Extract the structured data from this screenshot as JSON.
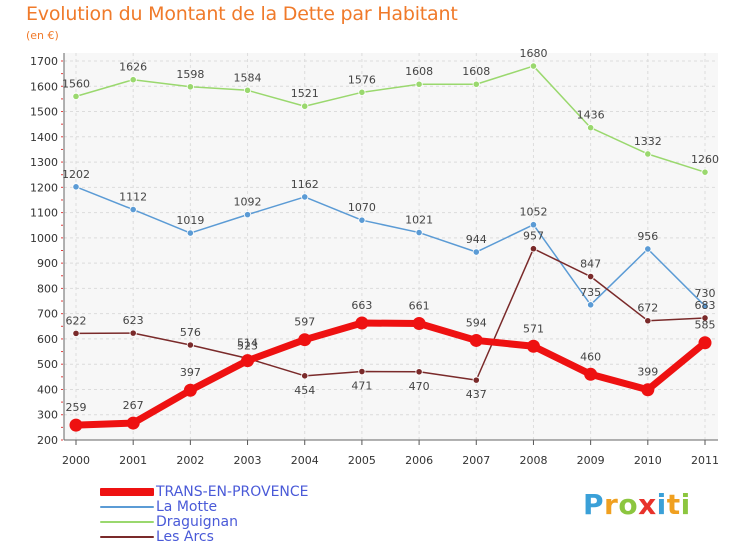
{
  "title": "Evolution du Montant de la Dette par Habitant",
  "unit_label": "(en €)",
  "logo": {
    "text": "Proxiti",
    "letters": [
      {
        "ch": "P",
        "color": "#3aa0d8"
      },
      {
        "ch": "r",
        "color": "#f0a020"
      },
      {
        "ch": "o",
        "color": "#8cc63f"
      },
      {
        "ch": "x",
        "color": "#e8322b"
      },
      {
        "ch": "i",
        "color": "#3aa0d8"
      },
      {
        "ch": "t",
        "color": "#f0a020"
      },
      {
        "ch": "i",
        "color": "#8cc63f"
      }
    ]
  },
  "chart_data": {
    "type": "line",
    "x": [
      "2000",
      "2001",
      "2002",
      "2003",
      "2004",
      "2005",
      "2006",
      "2007",
      "2008",
      "2009",
      "2010",
      "2011"
    ],
    "ylim": [
      200,
      1700
    ],
    "yticks": [
      200,
      300,
      400,
      500,
      600,
      700,
      800,
      900,
      1000,
      1100,
      1200,
      1300,
      1400,
      1500,
      1600,
      1700
    ],
    "grid": true,
    "legend_position": "bottom-left",
    "series": [
      {
        "name": "TRANS-EN-PROVENCE",
        "color": "#ee1111",
        "values": [
          259,
          267,
          397,
          514,
          597,
          663,
          661,
          594,
          571,
          460,
          399,
          585
        ]
      },
      {
        "name": "La Motte",
        "color": "#5b9bd5",
        "values": [
          1202,
          1112,
          1019,
          1092,
          1162,
          1070,
          1021,
          944,
          1052,
          735,
          956,
          730
        ]
      },
      {
        "name": "Draguignan",
        "color": "#9ad86e",
        "values": [
          1560,
          1626,
          1598,
          1584,
          1521,
          1576,
          1608,
          1608,
          1680,
          1436,
          1332,
          1260
        ]
      },
      {
        "name": "Les Arcs",
        "color": "#7a2a2a",
        "values": [
          622,
          623,
          576,
          523,
          454,
          471,
          470,
          437,
          957,
          847,
          672,
          683
        ]
      }
    ]
  }
}
